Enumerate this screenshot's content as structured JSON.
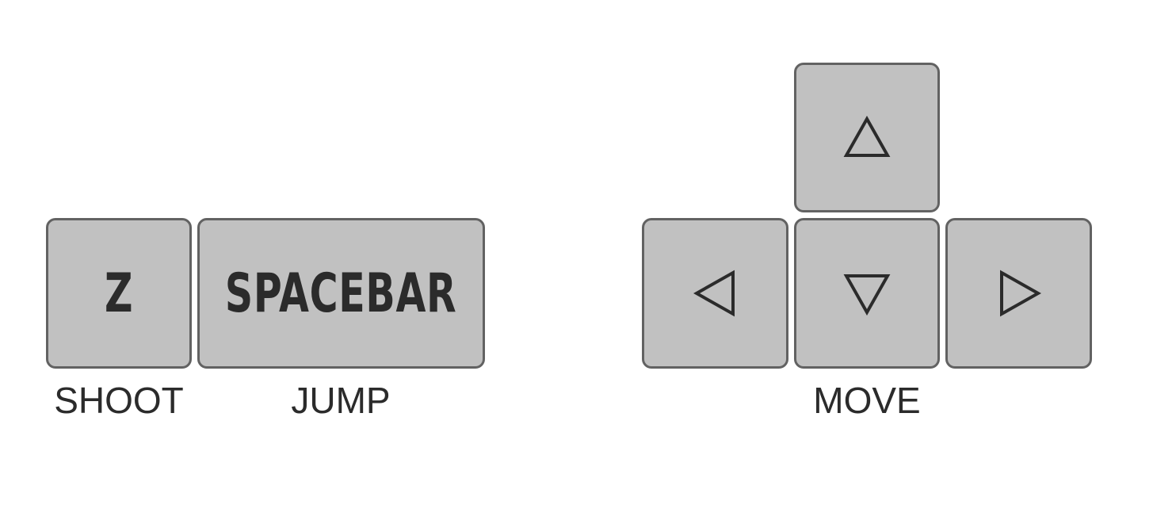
{
  "keys": {
    "shoot_key": "Z",
    "jump_key": "SPACEBAR",
    "up_icon": "up-arrow-icon",
    "left_icon": "left-arrow-icon",
    "down_icon": "down-arrow-icon",
    "right_icon": "right-arrow-icon"
  },
  "labels": {
    "shoot": "SHOOT",
    "jump": "JUMP",
    "move": "MOVE"
  },
  "colors": {
    "background": "#ffffff",
    "key_fill": "#c1c1c1",
    "key_border": "#626262",
    "text": "#2b2b2b"
  }
}
